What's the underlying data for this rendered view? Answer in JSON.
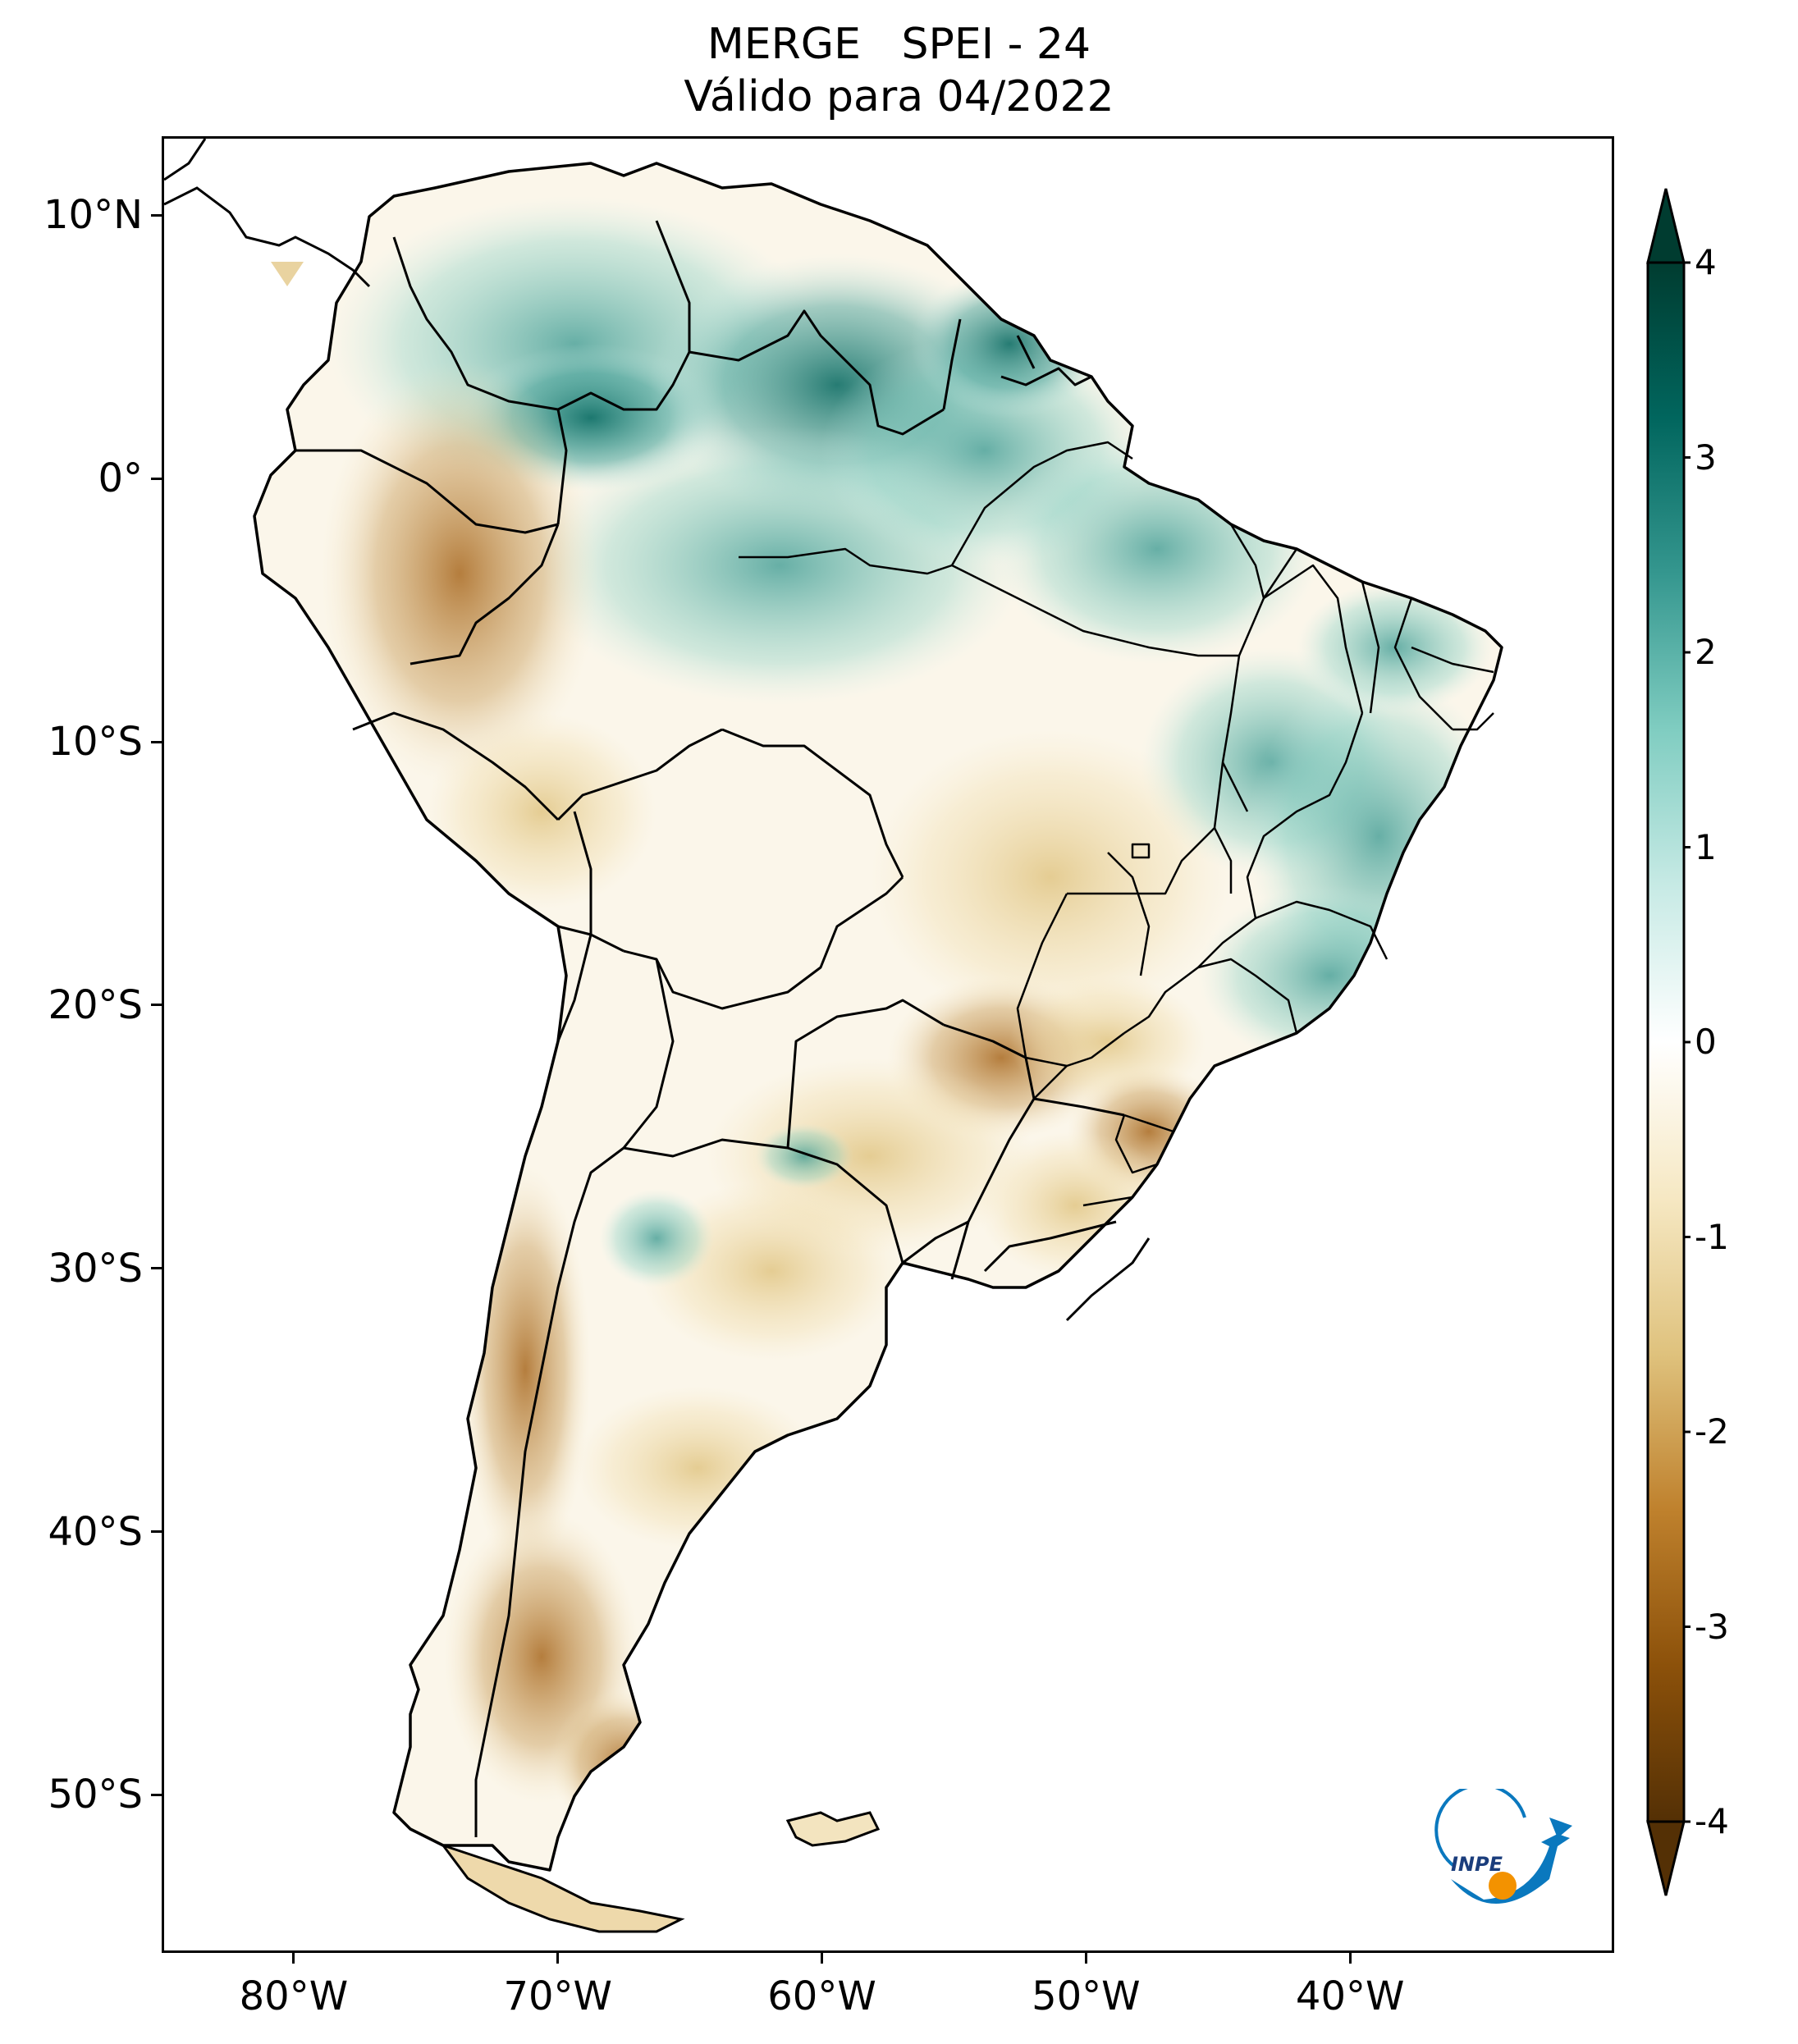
{
  "title": {
    "line1": "MERGE   SPEI - 24",
    "line2": "Válido para 04/2022"
  },
  "map": {
    "region": "South America",
    "lon_range": [
      -85,
      -30
    ],
    "lat_range": [
      -56,
      13
    ],
    "y_ticks": [
      {
        "value": 10,
        "label": "10°N"
      },
      {
        "value": 0,
        "label": "0°"
      },
      {
        "value": -10,
        "label": "10°S"
      },
      {
        "value": -20,
        "label": "20°S"
      },
      {
        "value": -30,
        "label": "30°S"
      },
      {
        "value": -40,
        "label": "40°S"
      },
      {
        "value": -50,
        "label": "50°S"
      }
    ],
    "x_ticks": [
      {
        "value": -80,
        "label": "80°W"
      },
      {
        "value": -70,
        "label": "70°W"
      },
      {
        "value": -60,
        "label": "60°W"
      },
      {
        "value": -50,
        "label": "50°W"
      },
      {
        "value": -40,
        "label": "40°W"
      }
    ]
  },
  "colorbar": {
    "min": -4,
    "max": 4,
    "ticks": [
      "4",
      "3",
      "2",
      "1",
      "0",
      "-1",
      "-2",
      "-3",
      "-4"
    ],
    "extend": "both",
    "colormap": "BrBG",
    "colors": [
      "#543005",
      "#8c510a",
      "#bf812d",
      "#dfc27d",
      "#f6e8c3",
      "#ffffff",
      "#c7eae5",
      "#80cdc1",
      "#35978f",
      "#01665e",
      "#003c30"
    ]
  },
  "logo": {
    "text": "INPE",
    "icon": "inpe-logo-icon",
    "colors": [
      "#0a78be",
      "#f39200"
    ]
  }
}
